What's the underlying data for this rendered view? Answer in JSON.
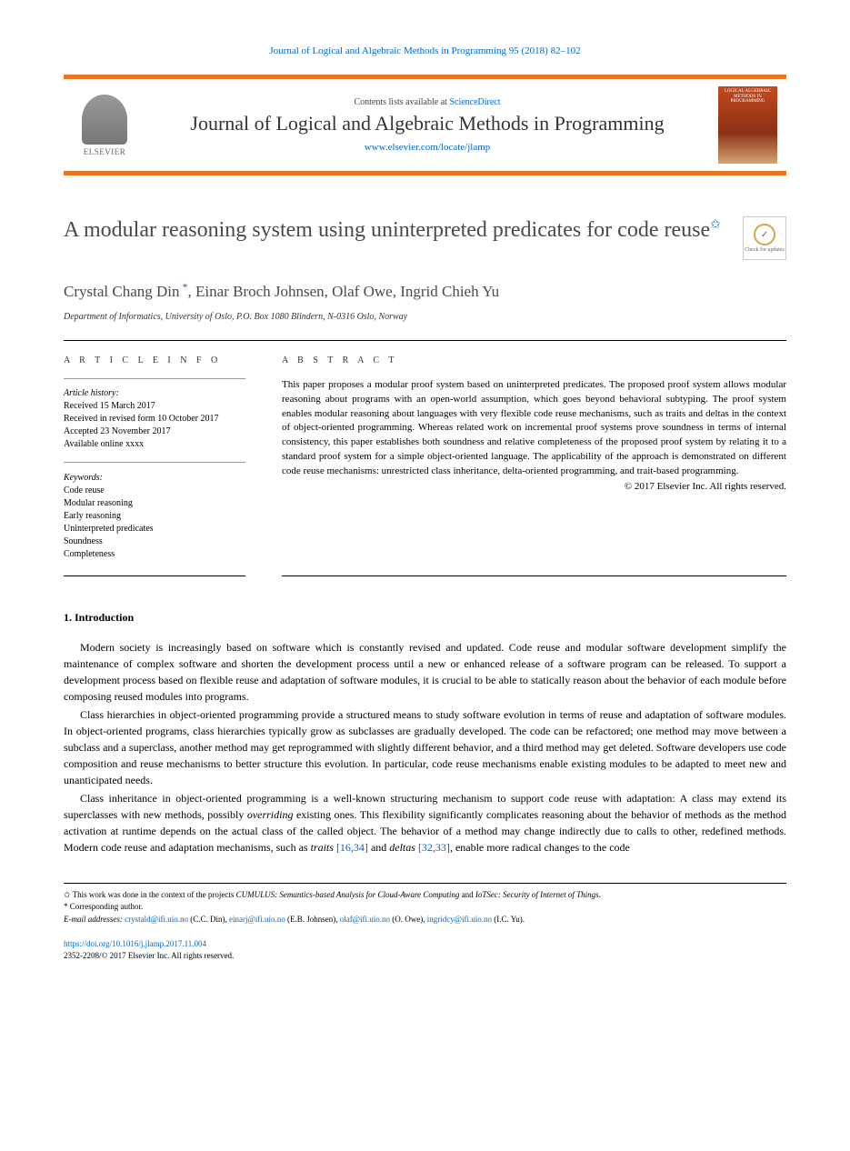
{
  "citation": "Journal of Logical and Algebraic Methods in Programming 95 (2018) 82–102",
  "header": {
    "contents_prefix": "Contents lists available at ",
    "contents_link": "ScienceDirect",
    "journal_name": "Journal of Logical and Algebraic Methods in Programming",
    "journal_url": "www.elsevier.com/locate/jlamp",
    "publisher_name": "ELSEVIER",
    "cover_text": "LOGICAL ALGEBRAIC METHODS IN PROGRAMMING"
  },
  "updates_label": "Check for updates",
  "title": "A modular reasoning system using uninterpreted predicates for code reuse",
  "authors": "Crystal Chang Din *, Einar Broch Johnsen, Olaf Owe, Ingrid Chieh Yu",
  "affiliation": "Department of Informatics, University of Oslo, P.O. Box 1080 Blindern, N-0316 Oslo, Norway",
  "article_info": {
    "heading": "A R T I C L E   I N F O",
    "history_label": "Article history:",
    "history": [
      "Received 15 March 2017",
      "Received in revised form 10 October 2017",
      "Accepted 23 November 2017",
      "Available online xxxx"
    ],
    "keywords_label": "Keywords:",
    "keywords": [
      "Code reuse",
      "Modular reasoning",
      "Early reasoning",
      "Uninterpreted predicates",
      "Soundness",
      "Completeness"
    ]
  },
  "abstract": {
    "heading": "A B S T R A C T",
    "text": "This paper proposes a modular proof system based on uninterpreted predicates. The proposed proof system allows modular reasoning about programs with an open-world assumption, which goes beyond behavioral subtyping. The proof system enables modular reasoning about languages with very flexible code reuse mechanisms, such as traits and deltas in the context of object-oriented programming. Whereas related work on incremental proof systems prove soundness in terms of internal consistency, this paper establishes both soundness and relative completeness of the proposed proof system by relating it to a standard proof system for a simple object-oriented language. The applicability of the approach is demonstrated on different code reuse mechanisms: unrestricted class inheritance, delta-oriented programming, and trait-based programming.",
    "copyright": "© 2017 Elsevier Inc. All rights reserved."
  },
  "section1": {
    "heading": "1. Introduction",
    "para1": "Modern society is increasingly based on software which is constantly revised and updated. Code reuse and modular software development simplify the maintenance of complex software and shorten the development process until a new or enhanced release of a software program can be released. To support a development process based on flexible reuse and adaptation of software modules, it is crucial to be able to statically reason about the behavior of each module before composing reused modules into programs.",
    "para2": "Class hierarchies in object-oriented programming provide a structured means to study software evolution in terms of reuse and adaptation of software modules. In object-oriented programs, class hierarchies typically grow as subclasses are gradually developed. The code can be refactored; one method may move between a subclass and a superclass, another method may get reprogrammed with slightly different behavior, and a third method may get deleted. Software developers use code composition and reuse mechanisms to better structure this evolution. In particular, code reuse mechanisms enable existing modules to be adapted to meet new and unanticipated needs.",
    "para3_a": "Class inheritance in object-oriented programming is a well-known structuring mechanism to support code reuse with adaptation: A class may extend its superclasses with new methods, possibly ",
    "para3_em1": "overriding",
    "para3_b": " existing ones. This flexibility significantly complicates reasoning about the behavior of methods as the method activation at runtime depends on the actual class of the called object. The behavior of a method may change indirectly due to calls to other, redefined methods. Modern code reuse and adaptation mechanisms, such as ",
    "para3_em2": "traits",
    "para3_ref1": " [16,34]",
    "para3_c": " and ",
    "para3_em3": "deltas",
    "para3_ref2": " [32,33]",
    "para3_d": ", enable more radical changes to the code"
  },
  "footnotes": {
    "fn1_a": "This work was done in the context of the projects ",
    "fn1_em1": "CUMULUS: Semantics-based Analysis for Cloud-Aware Computing",
    "fn1_b": " and ",
    "fn1_em2": "IoTSec: Security of Internet of Things",
    "fn1_c": ".",
    "fn2": "Corresponding author.",
    "emails_label": "E-mail addresses: ",
    "emails": [
      {
        "addr": "crystald@ifi.uio.no",
        "name": " (C.C. Din), "
      },
      {
        "addr": "einarj@ifi.uio.no",
        "name": " (E.B. Johnsen), "
      },
      {
        "addr": "olaf@ifi.uio.no",
        "name": " (O. Owe), "
      },
      {
        "addr": "ingridcy@ifi.uio.no",
        "name": " (I.C. Yu)."
      }
    ]
  },
  "doi": {
    "url": "https://doi.org/10.1016/j.jlamp.2017.11.004",
    "issn_line": "2352-2208/© 2017 Elsevier Inc. All rights reserved."
  },
  "colors": {
    "accent_orange": "#e87722",
    "link_blue": "#0066cc",
    "text_gray": "#4a4a4a",
    "background": "#ffffff"
  }
}
